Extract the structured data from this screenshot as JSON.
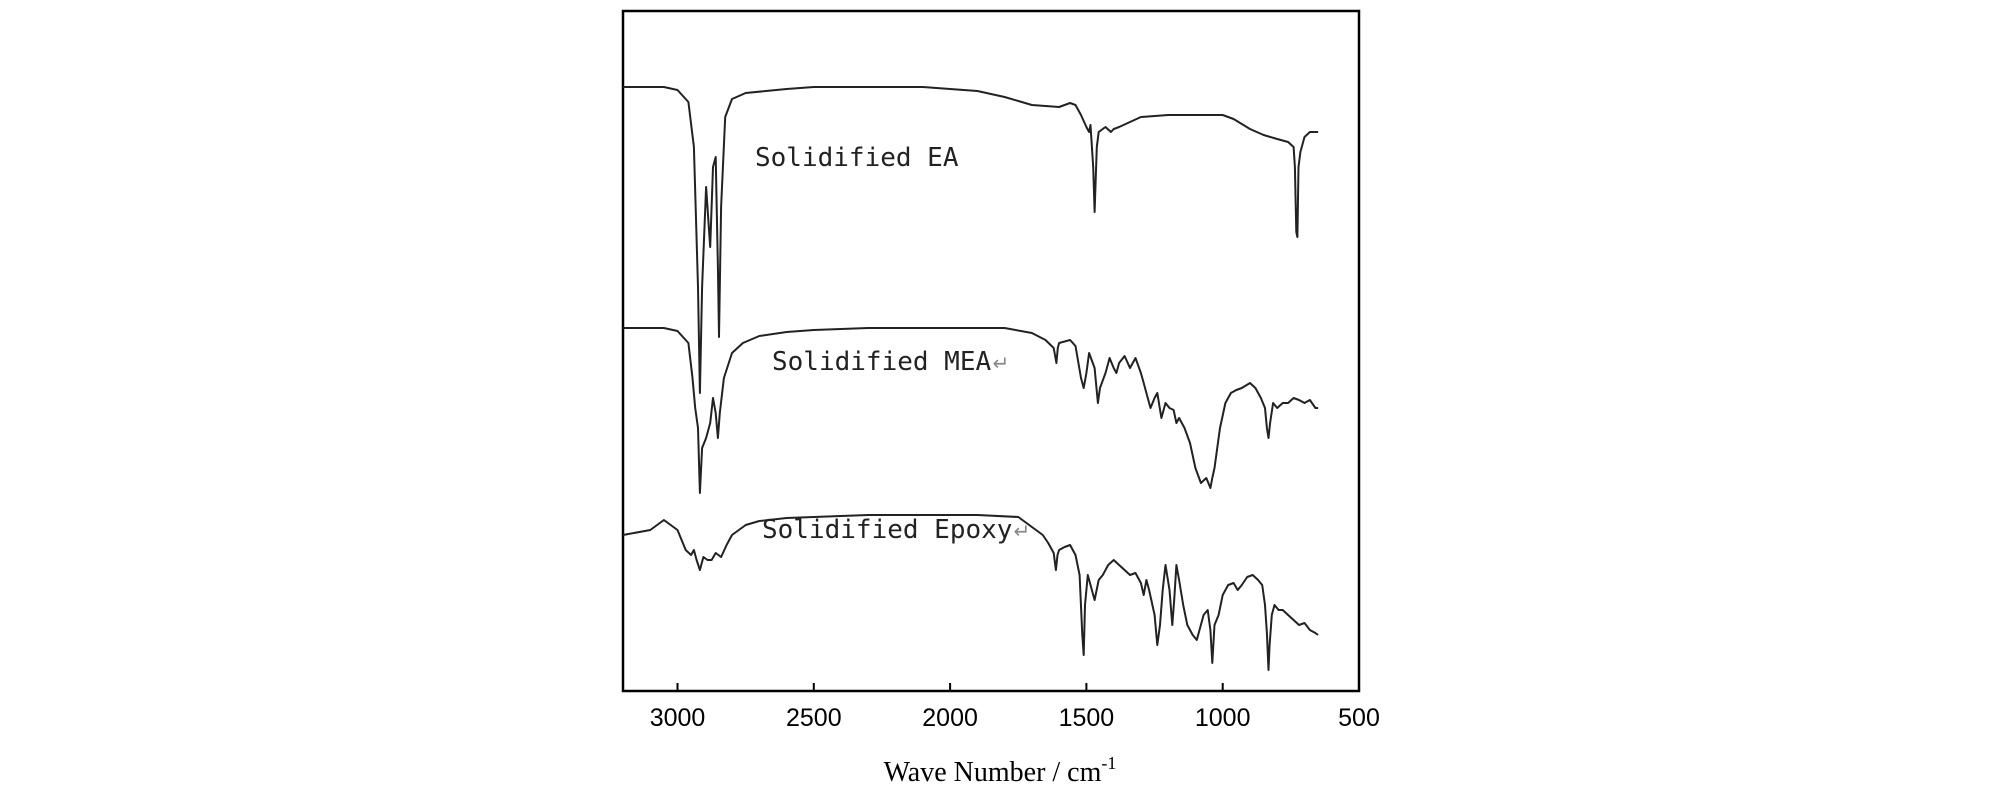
{
  "chart_data": {
    "type": "line",
    "title": "",
    "xlabel": "Wave Number / cm",
    "xlabel_sup": "-1",
    "ylabel": "",
    "xlim": [
      3200,
      500
    ],
    "x_reversed": true,
    "y_ticks_shown": false,
    "grid": false,
    "xticks": [
      3000,
      2500,
      2000,
      1500,
      1000,
      500
    ],
    "xtick_labels": [
      "3000",
      "2500",
      "2000",
      "1500",
      "1000",
      "500"
    ],
    "line_color": "#222222",
    "series": [
      {
        "name": "Solidified  EA",
        "label": "Solidified  EA",
        "return_mark": false,
        "points": [
          [
            3200,
            0
          ],
          [
            3050,
            0
          ],
          [
            3000,
            3
          ],
          [
            2960,
            15
          ],
          [
            2940,
            60
          ],
          [
            2925,
            200
          ],
          [
            2918,
            306
          ],
          [
            2910,
            200
          ],
          [
            2895,
            100
          ],
          [
            2880,
            160
          ],
          [
            2870,
            80
          ],
          [
            2860,
            70
          ],
          [
            2852,
            180
          ],
          [
            2848,
            250
          ],
          [
            2840,
            120
          ],
          [
            2825,
            30
          ],
          [
            2800,
            12
          ],
          [
            2750,
            6
          ],
          [
            2600,
            2
          ],
          [
            2500,
            0
          ],
          [
            2300,
            0
          ],
          [
            2100,
            0
          ],
          [
            2000,
            2
          ],
          [
            1900,
            4
          ],
          [
            1800,
            10
          ],
          [
            1700,
            18
          ],
          [
            1600,
            20
          ],
          [
            1560,
            16
          ],
          [
            1540,
            18
          ],
          [
            1520,
            28
          ],
          [
            1500,
            40
          ],
          [
            1490,
            45
          ],
          [
            1485,
            38
          ],
          [
            1475,
            80
          ],
          [
            1470,
            125
          ],
          [
            1462,
            60
          ],
          [
            1455,
            45
          ],
          [
            1430,
            40
          ],
          [
            1410,
            45
          ],
          [
            1400,
            42
          ],
          [
            1380,
            40
          ],
          [
            1300,
            30
          ],
          [
            1200,
            28
          ],
          [
            1000,
            28
          ],
          [
            960,
            32
          ],
          [
            900,
            42
          ],
          [
            850,
            48
          ],
          [
            800,
            52
          ],
          [
            760,
            55
          ],
          [
            740,
            60
          ],
          [
            735,
            80
          ],
          [
            730,
            145
          ],
          [
            726,
            150
          ],
          [
            722,
            80
          ],
          [
            715,
            65
          ],
          [
            700,
            50
          ],
          [
            680,
            45
          ],
          [
            650,
            45
          ]
        ]
      },
      {
        "name": "Solidified MEA",
        "label": "Solidified MEA",
        "return_mark": true,
        "points": [
          [
            3200,
            0
          ],
          [
            3050,
            0
          ],
          [
            3000,
            3
          ],
          [
            2960,
            15
          ],
          [
            2945,
            50
          ],
          [
            2935,
            80
          ],
          [
            2925,
            100
          ],
          [
            2918,
            165
          ],
          [
            2910,
            120
          ],
          [
            2895,
            110
          ],
          [
            2880,
            95
          ],
          [
            2870,
            70
          ],
          [
            2860,
            85
          ],
          [
            2852,
            110
          ],
          [
            2845,
            85
          ],
          [
            2830,
            50
          ],
          [
            2800,
            25
          ],
          [
            2760,
            15
          ],
          [
            2700,
            8
          ],
          [
            2600,
            4
          ],
          [
            2500,
            2
          ],
          [
            2300,
            0
          ],
          [
            1800,
            0
          ],
          [
            1700,
            5
          ],
          [
            1650,
            12
          ],
          [
            1620,
            20
          ],
          [
            1610,
            35
          ],
          [
            1605,
            20
          ],
          [
            1600,
            15
          ],
          [
            1560,
            12
          ],
          [
            1540,
            18
          ],
          [
            1520,
            50
          ],
          [
            1510,
            60
          ],
          [
            1500,
            45
          ],
          [
            1490,
            25
          ],
          [
            1470,
            40
          ],
          [
            1458,
            75
          ],
          [
            1450,
            60
          ],
          [
            1430,
            45
          ],
          [
            1415,
            30
          ],
          [
            1400,
            40
          ],
          [
            1390,
            45
          ],
          [
            1380,
            35
          ],
          [
            1360,
            28
          ],
          [
            1340,
            40
          ],
          [
            1320,
            30
          ],
          [
            1300,
            45
          ],
          [
            1290,
            55
          ],
          [
            1280,
            65
          ],
          [
            1265,
            80
          ],
          [
            1250,
            70
          ],
          [
            1240,
            65
          ],
          [
            1225,
            90
          ],
          [
            1210,
            75
          ],
          [
            1195,
            80
          ],
          [
            1180,
            82
          ],
          [
            1170,
            95
          ],
          [
            1160,
            90
          ],
          [
            1140,
            100
          ],
          [
            1120,
            115
          ],
          [
            1100,
            140
          ],
          [
            1080,
            155
          ],
          [
            1060,
            150
          ],
          [
            1045,
            160
          ],
          [
            1038,
            150
          ],
          [
            1030,
            140
          ],
          [
            1010,
            100
          ],
          [
            990,
            75
          ],
          [
            970,
            65
          ],
          [
            950,
            62
          ],
          [
            930,
            60
          ],
          [
            900,
            55
          ],
          [
            880,
            60
          ],
          [
            860,
            70
          ],
          [
            845,
            80
          ],
          [
            838,
            100
          ],
          [
            832,
            110
          ],
          [
            826,
            95
          ],
          [
            815,
            75
          ],
          [
            800,
            80
          ],
          [
            780,
            75
          ],
          [
            760,
            75
          ],
          [
            740,
            70
          ],
          [
            720,
            72
          ],
          [
            700,
            75
          ],
          [
            680,
            72
          ],
          [
            660,
            80
          ],
          [
            650,
            80
          ]
        ]
      },
      {
        "name": "Solidified Epoxy",
        "label": "Solidified Epoxy",
        "return_mark": true,
        "points": [
          [
            3200,
            20
          ],
          [
            3100,
            15
          ],
          [
            3050,
            5
          ],
          [
            3000,
            15
          ],
          [
            2970,
            35
          ],
          [
            2950,
            40
          ],
          [
            2940,
            35
          ],
          [
            2930,
            45
          ],
          [
            2918,
            55
          ],
          [
            2905,
            42
          ],
          [
            2890,
            45
          ],
          [
            2875,
            45
          ],
          [
            2860,
            38
          ],
          [
            2840,
            42
          ],
          [
            2820,
            30
          ],
          [
            2800,
            20
          ],
          [
            2750,
            10
          ],
          [
            2700,
            6
          ],
          [
            2600,
            3
          ],
          [
            2500,
            2
          ],
          [
            2300,
            0
          ],
          [
            1900,
            0
          ],
          [
            1750,
            2
          ],
          [
            1700,
            12
          ],
          [
            1660,
            20
          ],
          [
            1640,
            28
          ],
          [
            1620,
            38
          ],
          [
            1612,
            55
          ],
          [
            1606,
            40
          ],
          [
            1600,
            35
          ],
          [
            1580,
            32
          ],
          [
            1560,
            30
          ],
          [
            1540,
            40
          ],
          [
            1525,
            60
          ],
          [
            1515,
            120
          ],
          [
            1510,
            140
          ],
          [
            1505,
            90
          ],
          [
            1495,
            60
          ],
          [
            1485,
            70
          ],
          [
            1470,
            85
          ],
          [
            1455,
            65
          ],
          [
            1440,
            60
          ],
          [
            1420,
            50
          ],
          [
            1400,
            45
          ],
          [
            1380,
            50
          ],
          [
            1360,
            55
          ],
          [
            1340,
            60
          ],
          [
            1320,
            58
          ],
          [
            1300,
            68
          ],
          [
            1290,
            80
          ],
          [
            1280,
            65
          ],
          [
            1270,
            75
          ],
          [
            1250,
            100
          ],
          [
            1240,
            130
          ],
          [
            1230,
            110
          ],
          [
            1220,
            75
          ],
          [
            1210,
            50
          ],
          [
            1195,
            75
          ],
          [
            1185,
            110
          ],
          [
            1178,
            85
          ],
          [
            1170,
            50
          ],
          [
            1160,
            65
          ],
          [
            1145,
            90
          ],
          [
            1130,
            110
          ],
          [
            1110,
            120
          ],
          [
            1095,
            125
          ],
          [
            1085,
            115
          ],
          [
            1070,
            100
          ],
          [
            1055,
            95
          ],
          [
            1045,
            115
          ],
          [
            1038,
            148
          ],
          [
            1030,
            110
          ],
          [
            1015,
            100
          ],
          [
            1000,
            80
          ],
          [
            980,
            70
          ],
          [
            960,
            68
          ],
          [
            945,
            75
          ],
          [
            930,
            70
          ],
          [
            910,
            62
          ],
          [
            890,
            60
          ],
          [
            870,
            65
          ],
          [
            855,
            70
          ],
          [
            845,
            90
          ],
          [
            838,
            118
          ],
          [
            832,
            155
          ],
          [
            828,
            130
          ],
          [
            820,
            100
          ],
          [
            810,
            90
          ],
          [
            795,
            95
          ],
          [
            780,
            95
          ],
          [
            760,
            100
          ],
          [
            740,
            105
          ],
          [
            720,
            110
          ],
          [
            700,
            108
          ],
          [
            680,
            115
          ],
          [
            660,
            118
          ],
          [
            650,
            120
          ]
        ]
      }
    ]
  }
}
